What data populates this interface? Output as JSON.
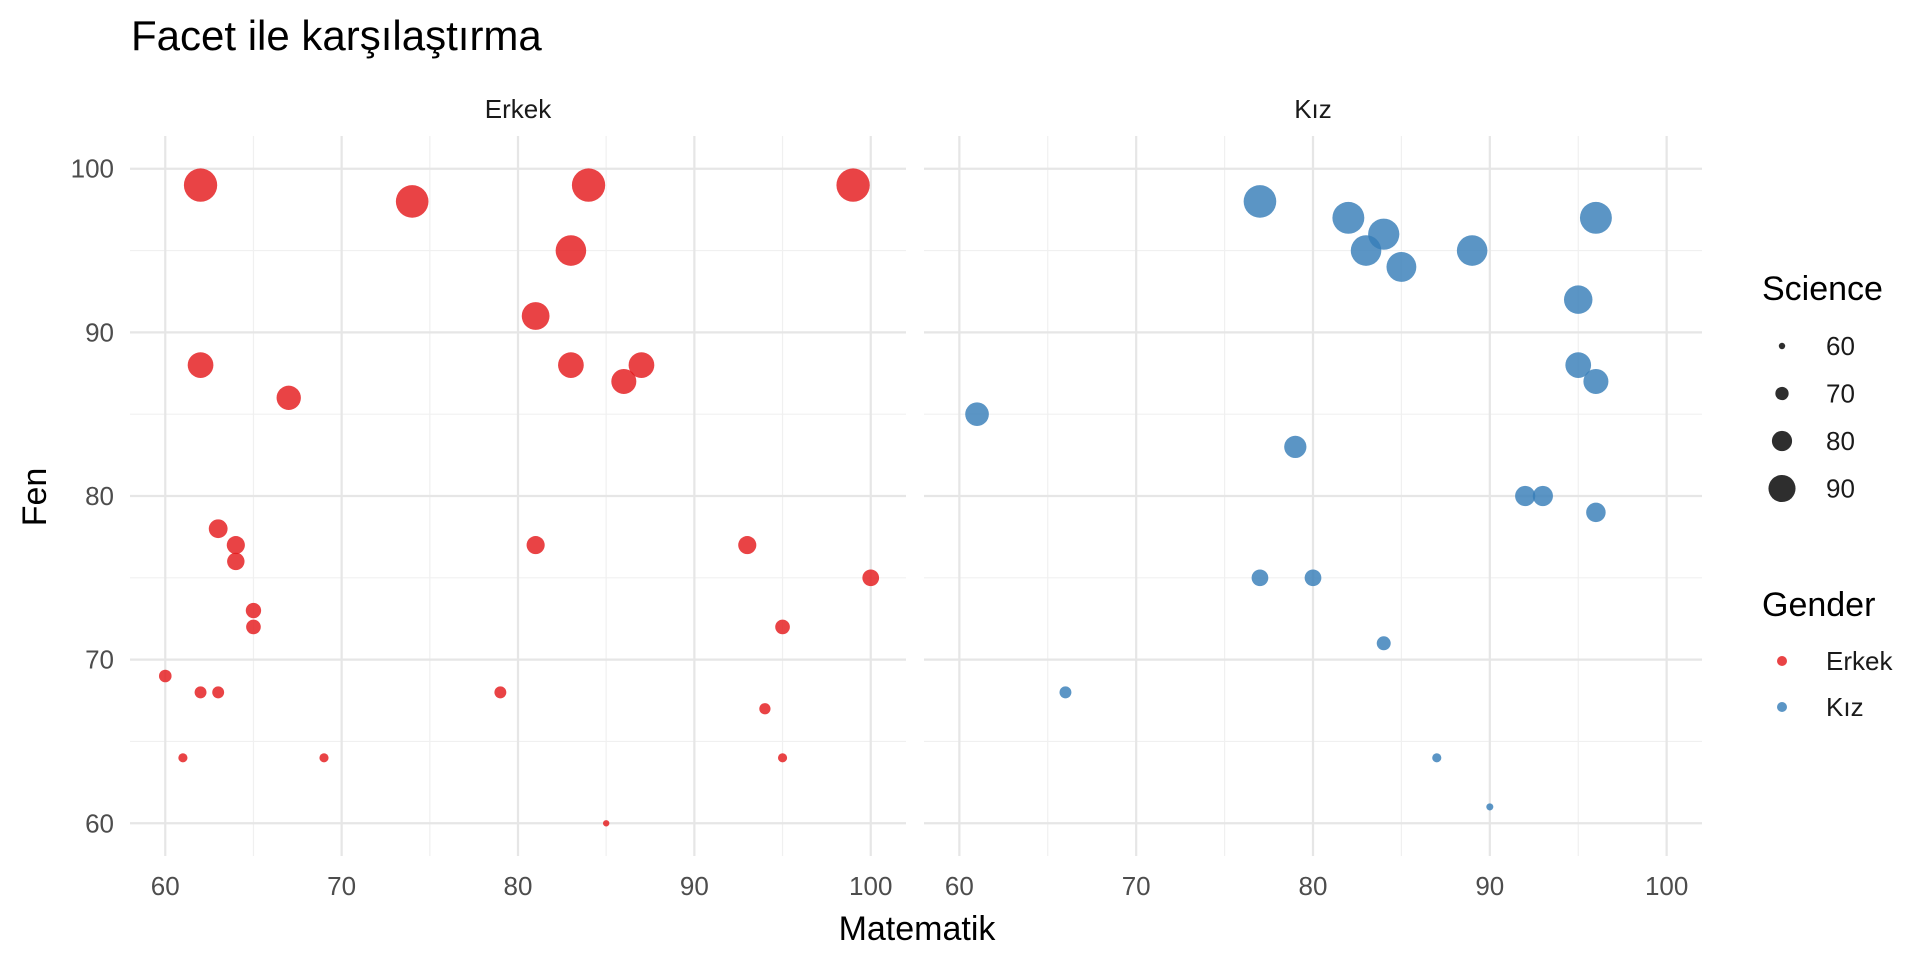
{
  "chart_data": {
    "type": "scatter",
    "title": "Facet ile karşılaştırma",
    "xlabel": "Matematik",
    "ylabel": "Fen",
    "xlim": [
      58,
      102
    ],
    "ylim": [
      58,
      102
    ],
    "x_ticks": [
      60,
      70,
      80,
      90,
      100
    ],
    "y_ticks": [
      60,
      70,
      80,
      90,
      100
    ],
    "grid": true,
    "facets": [
      "Erkek",
      "Kız"
    ],
    "size_legend": {
      "title": "Science",
      "values": [
        60,
        70,
        80,
        90
      ]
    },
    "color_legend": {
      "title": "Gender",
      "entries": [
        {
          "label": "Erkek",
          "color": "#E41A1C"
        },
        {
          "label": "Kız",
          "color": "#377EB8"
        }
      ]
    },
    "series": [
      {
        "name": "Erkek",
        "color": "#E41A1C",
        "points": [
          [
            62,
            99
          ],
          [
            74,
            98
          ],
          [
            84,
            99
          ],
          [
            99,
            99
          ],
          [
            83,
            95
          ],
          [
            81,
            91
          ],
          [
            62,
            88
          ],
          [
            83,
            88
          ],
          [
            86,
            87
          ],
          [
            87,
            88
          ],
          [
            67,
            86
          ],
          [
            63,
            78
          ],
          [
            64,
            77
          ],
          [
            64,
            76
          ],
          [
            81,
            77
          ],
          [
            93,
            77
          ],
          [
            100,
            75
          ],
          [
            65,
            73
          ],
          [
            65,
            72
          ],
          [
            95,
            72
          ],
          [
            60,
            69
          ],
          [
            62,
            68
          ],
          [
            63,
            68
          ],
          [
            79,
            68
          ],
          [
            94,
            67
          ],
          [
            61,
            64
          ],
          [
            69,
            64
          ],
          [
            95,
            64
          ],
          [
            85,
            60
          ]
        ]
      },
      {
        "name": "Kız",
        "color": "#377EB8",
        "points": [
          [
            77,
            98
          ],
          [
            82,
            97
          ],
          [
            84,
            96
          ],
          [
            83,
            95
          ],
          [
            85,
            94
          ],
          [
            89,
            95
          ],
          [
            96,
            97
          ],
          [
            95,
            92
          ],
          [
            95,
            88
          ],
          [
            96,
            87
          ],
          [
            61,
            85
          ],
          [
            79,
            83
          ],
          [
            92,
            80
          ],
          [
            93,
            80
          ],
          [
            96,
            79
          ],
          [
            77,
            75
          ],
          [
            80,
            75
          ],
          [
            84,
            71
          ],
          [
            66,
            68
          ],
          [
            87,
            64
          ],
          [
            90,
            61
          ]
        ]
      }
    ]
  }
}
